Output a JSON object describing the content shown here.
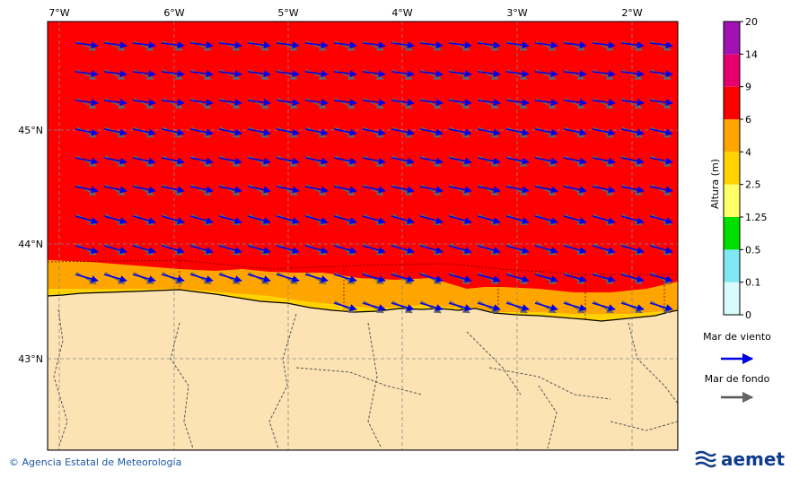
{
  "map": {
    "lon_labels": [
      "7°W",
      "6°W",
      "5°W",
      "4°W",
      "3°W",
      "2°W"
    ],
    "lat_labels": [
      "45°N",
      "44°N",
      "43°N"
    ]
  },
  "colorbar": {
    "title": "Altura (m)",
    "levels": [
      "0",
      "0.1",
      "0.5",
      "1.25",
      "2.5",
      "4",
      "6",
      "9",
      "14",
      "20"
    ],
    "colors": [
      "#d9fbfb",
      "#7fe8f2",
      "#00e000",
      "#ffff66",
      "#ffd200",
      "#ffa500",
      "#ff0000",
      "#e6006e",
      "#a012b4"
    ]
  },
  "legend": {
    "wind_sea": "Mar de viento",
    "swell": "Mar de fondo",
    "wind_sea_color": "#0000e6",
    "swell_color": "#555555"
  },
  "footer": {
    "credit": "© Agencia Estatal de Meteorología",
    "logo_text": "aemet"
  },
  "colors": {
    "sea_high": "#ff0000",
    "sea_mid": "#ffa500",
    "land": "#fde3b4"
  }
}
